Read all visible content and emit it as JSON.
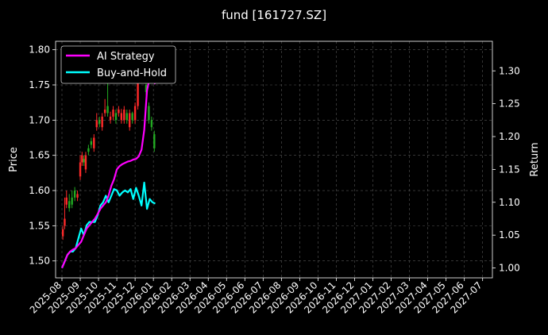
{
  "chart_data": {
    "type": "line",
    "title": "fund [161727.SZ]",
    "ylabel_left": "Price",
    "ylabel_right": "Return",
    "xlabel": "",
    "grid": true,
    "legend_position": "top-left",
    "colors": {
      "background": "#000000",
      "ai_strategy": "#ff00ff",
      "buy_and_hold": "#00ffff",
      "candle_up": "#ff2a2a",
      "candle_down": "#22aa22",
      "grid": "#555555"
    },
    "x_ticks": [
      "2025-08",
      "2025-09",
      "2025-10",
      "2025-11",
      "2025-12",
      "2026-01",
      "2026-02",
      "2026-03",
      "2026-04",
      "2026-05",
      "2026-06",
      "2026-07",
      "2026-08",
      "2026-09",
      "2026-10",
      "2026-11",
      "2026-12",
      "2027-01",
      "2027-02",
      "2027-03",
      "2027-04",
      "2027-05",
      "2027-06",
      "2027-07"
    ],
    "left_ticks": [
      "1.50",
      "1.55",
      "1.60",
      "1.65",
      "1.70",
      "1.75",
      "1.80"
    ],
    "right_ticks": [
      "1.00",
      "1.05",
      "1.10",
      "1.15",
      "1.20",
      "1.25",
      "1.30"
    ],
    "ylim_left": [
      1.476,
      1.812
    ],
    "ylim_right": [
      0.985,
      1.345
    ],
    "xlim_months": [
      0,
      24
    ],
    "series": [
      {
        "name": "AI Strategy",
        "x": [
          0.0,
          0.15,
          0.3,
          0.45,
          0.6,
          0.75,
          0.9,
          1.05,
          1.2,
          1.35,
          1.5,
          1.65,
          1.8,
          1.95,
          2.1,
          2.25,
          2.4,
          2.55,
          2.7,
          2.85,
          3.0,
          3.15,
          3.3,
          3.45,
          3.6,
          3.75,
          3.9,
          4.05,
          4.2,
          4.35,
          4.5,
          4.65,
          4.8,
          4.95,
          5.1
        ],
        "values": [
          1.0,
          1.01,
          1.02,
          1.025,
          1.028,
          1.03,
          1.035,
          1.04,
          1.05,
          1.06,
          1.065,
          1.07,
          1.075,
          1.082,
          1.09,
          1.095,
          1.1,
          1.11,
          1.125,
          1.135,
          1.15,
          1.155,
          1.158,
          1.16,
          1.162,
          1.163,
          1.165,
          1.166,
          1.17,
          1.18,
          1.21,
          1.27,
          1.29,
          1.285,
          1.28
        ]
      },
      {
        "name": "Buy-and-Hold",
        "x": [
          0.0,
          0.15,
          0.3,
          0.45,
          0.6,
          0.75,
          0.9,
          1.05,
          1.2,
          1.35,
          1.5,
          1.65,
          1.8,
          1.95,
          2.1,
          2.25,
          2.4,
          2.55,
          2.7,
          2.85,
          3.0,
          3.15,
          3.3,
          3.45,
          3.6,
          3.75,
          3.9,
          4.05,
          4.2,
          4.35,
          4.5,
          4.65,
          4.8,
          4.95,
          5.1
        ],
        "values": [
          1.0,
          1.01,
          1.02,
          1.025,
          1.025,
          1.03,
          1.045,
          1.06,
          1.05,
          1.065,
          1.07,
          1.07,
          1.07,
          1.08,
          1.095,
          1.1,
          1.11,
          1.1,
          1.11,
          1.12,
          1.118,
          1.11,
          1.115,
          1.118,
          1.115,
          1.12,
          1.105,
          1.122,
          1.11,
          1.095,
          1.13,
          1.09,
          1.105,
          1.1,
          1.098
        ]
      }
    ],
    "candles": {
      "x": [
        0.05,
        0.15,
        0.25,
        0.4,
        0.55,
        0.7,
        0.85,
        1.0,
        1.1,
        1.2,
        1.3,
        1.45,
        1.6,
        1.75,
        1.9,
        2.05,
        2.2,
        2.35,
        2.5,
        2.65,
        2.8,
        2.95,
        3.1,
        3.25,
        3.4,
        3.55,
        3.7,
        3.85,
        4.0,
        4.15,
        4.3,
        4.45,
        4.6,
        4.75,
        4.9,
        5.05
      ],
      "open": [
        1.535,
        1.55,
        1.58,
        1.585,
        1.59,
        1.6,
        1.59,
        1.62,
        1.64,
        1.645,
        1.63,
        1.66,
        1.67,
        1.66,
        1.69,
        1.7,
        1.69,
        1.71,
        1.72,
        1.7,
        1.705,
        1.71,
        1.71,
        1.7,
        1.7,
        1.71,
        1.69,
        1.71,
        1.7,
        1.72,
        1.77,
        1.79,
        1.75,
        1.72,
        1.7,
        1.68
      ],
      "close": [
        1.545,
        1.56,
        1.59,
        1.575,
        1.58,
        1.59,
        1.595,
        1.64,
        1.65,
        1.64,
        1.65,
        1.655,
        1.665,
        1.675,
        1.7,
        1.695,
        1.705,
        1.715,
        1.71,
        1.705,
        1.715,
        1.7,
        1.715,
        1.71,
        1.715,
        1.7,
        1.71,
        1.7,
        1.72,
        1.76,
        1.79,
        1.76,
        1.74,
        1.7,
        1.69,
        1.66
      ],
      "high": [
        1.55,
        1.59,
        1.6,
        1.595,
        1.6,
        1.605,
        1.6,
        1.65,
        1.655,
        1.65,
        1.655,
        1.665,
        1.675,
        1.68,
        1.71,
        1.705,
        1.71,
        1.73,
        1.76,
        1.712,
        1.72,
        1.715,
        1.72,
        1.716,
        1.72,
        1.715,
        1.715,
        1.712,
        1.725,
        1.77,
        1.795,
        1.795,
        1.755,
        1.725,
        1.705,
        1.685
      ],
      "low": [
        1.53,
        1.545,
        1.575,
        1.57,
        1.575,
        1.585,
        1.585,
        1.615,
        1.635,
        1.635,
        1.625,
        1.65,
        1.66,
        1.655,
        1.685,
        1.69,
        1.685,
        1.705,
        1.705,
        1.695,
        1.7,
        1.695,
        1.705,
        1.695,
        1.695,
        1.695,
        1.685,
        1.695,
        1.695,
        1.715,
        1.765,
        1.755,
        1.735,
        1.695,
        1.685,
        1.655
      ]
    }
  }
}
